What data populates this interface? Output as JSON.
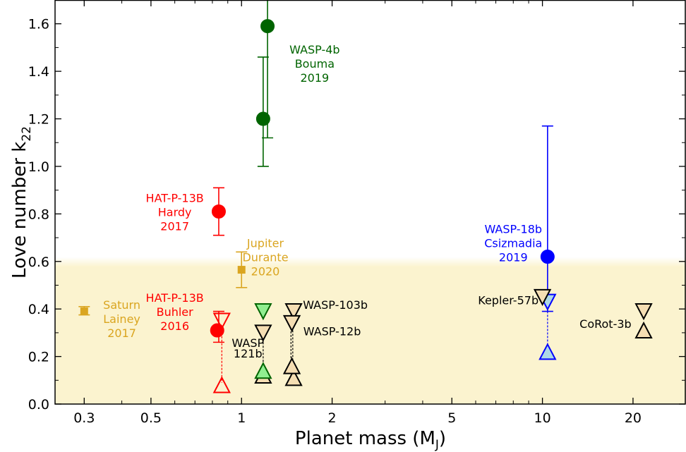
{
  "chart_data": {
    "type": "scatter",
    "xlabel": "Planet mass (M",
    "xlabel_sub": "J",
    "xlabel_tail": ")",
    "ylabel": "Love number k",
    "ylabel_sub": "22",
    "xscale": "log",
    "xlim": [
      0.24,
      30
    ],
    "ylim": [
      0.0,
      1.7
    ],
    "shaded_band": {
      "y_top": 0.58,
      "color": "#fbf3cf"
    },
    "x_ticks": [
      {
        "value": 0.3,
        "label": "0.3"
      },
      {
        "value": 0.5,
        "label": "0.5"
      },
      {
        "value": 1,
        "label": "1"
      },
      {
        "value": 2,
        "label": "2"
      },
      {
        "value": 5,
        "label": "5"
      },
      {
        "value": 10,
        "label": "10"
      },
      {
        "value": 20,
        "label": "20"
      }
    ],
    "x_minor_ticks": [
      0.4,
      0.6,
      0.7,
      0.8,
      0.9,
      3,
      4,
      6,
      7,
      8,
      9,
      30
    ],
    "y_ticks": [
      {
        "value": 0.0,
        "label": "0.0"
      },
      {
        "value": 0.2,
        "label": "0.2"
      },
      {
        "value": 0.4,
        "label": "0.4"
      },
      {
        "value": 0.6,
        "label": "0.6"
      },
      {
        "value": 0.8,
        "label": "0.8"
      },
      {
        "value": 1.0,
        "label": "1.0"
      },
      {
        "value": 1.2,
        "label": "1.2"
      },
      {
        "value": 1.4,
        "label": "1.4"
      },
      {
        "value": 1.6,
        "label": "1.6"
      }
    ],
    "y_minor_step": 0.1,
    "colors": {
      "green": "#006400",
      "red": "#ff0000",
      "gold": "#daa520",
      "blue": "#0000ff",
      "black": "#000000",
      "tan_fill": "#f5deb3",
      "light_green": "#90ee90",
      "light_blue": "#add8e6"
    },
    "error_bars": [
      {
        "x": 1.18,
        "y_low": 1.0,
        "y_high": 1.46,
        "color": "#006400"
      },
      {
        "x": 1.22,
        "y_low": 1.12,
        "y_high": 1.7,
        "color": "#006400"
      },
      {
        "x": 0.84,
        "y_low": 0.71,
        "y_high": 0.91,
        "color": "#ff0000"
      },
      {
        "x": 0.84,
        "y_low": 0.26,
        "y_high": 0.39,
        "color": "#ff0000"
      },
      {
        "x": 0.3,
        "y_low": 0.375,
        "y_high": 0.41,
        "color": "#daa520"
      },
      {
        "x": 1.0,
        "y_low": 0.49,
        "y_high": 0.64,
        "color": "#daa520"
      },
      {
        "x": 10.4,
        "y_low": 0.39,
        "y_high": 1.17,
        "color": "#0000ff"
      }
    ],
    "dashed_links": [
      {
        "x": 0.86,
        "y1": 0.33,
        "y2": 0.09,
        "color": "#ff0000"
      },
      {
        "x": 1.18,
        "y1": 0.29,
        "y2": 0.11,
        "color": "#000000"
      },
      {
        "x": 1.48,
        "y1": 0.34,
        "y2": 0.11,
        "color": "#000000"
      },
      {
        "x": 1.46,
        "y1": 0.38,
        "y2": 0.15,
        "color": "#000000"
      },
      {
        "x": 10.4,
        "y1": 0.42,
        "y2": 0.22,
        "color": "#0000ff"
      }
    ],
    "series": [
      {
        "name": "WASP-4b",
        "marker": "circle",
        "color": "#006400",
        "fill": "#006400",
        "points": [
          {
            "x": 1.18,
            "y": 1.2
          },
          {
            "x": 1.22,
            "y": 1.59
          }
        ]
      },
      {
        "name": "HAT-P-13B",
        "marker": "circle",
        "color": "#ff0000",
        "fill": "#ff0000",
        "points": [
          {
            "x": 0.84,
            "y": 0.81
          },
          {
            "x": 0.83,
            "y": 0.31
          }
        ]
      },
      {
        "name": "HAT-P-13B limits",
        "marker": "triangle",
        "color": "#ff0000",
        "fill": "none",
        "points": [
          {
            "x": 0.86,
            "y": 0.35,
            "dir": "down"
          },
          {
            "x": 0.86,
            "y": 0.08,
            "dir": "up"
          }
        ]
      },
      {
        "name": "Saturn",
        "marker": "square",
        "color": "#daa520",
        "fill": "#daa520",
        "points": [
          {
            "x": 0.3,
            "y": 0.39
          }
        ]
      },
      {
        "name": "Jupiter",
        "marker": "square",
        "color": "#daa520",
        "fill": "#daa520",
        "points": [
          {
            "x": 1.0,
            "y": 0.565
          }
        ]
      },
      {
        "name": "WASP-18b",
        "marker": "circle",
        "color": "#0000ff",
        "fill": "#0000ff",
        "points": [
          {
            "x": 10.4,
            "y": 0.62
          }
        ]
      },
      {
        "name": "WASP-18b limits",
        "marker": "triangle",
        "color": "#0000ff",
        "fill": "#add8e6",
        "points": [
          {
            "x": 10.4,
            "y": 0.43,
            "dir": "down"
          },
          {
            "x": 10.4,
            "y": 0.22,
            "dir": "up"
          }
        ]
      },
      {
        "name": "WASP-121b",
        "marker": "triangle",
        "color": "#000000",
        "fill": "#f5deb3",
        "points": [
          {
            "x": 1.18,
            "y": 0.3,
            "dir": "down"
          },
          {
            "x": 1.18,
            "y": 0.12,
            "dir": "up"
          }
        ]
      },
      {
        "name": "WASP-121b (alt)",
        "marker": "triangle",
        "color": "#006400",
        "fill": "#90ee90",
        "points": [
          {
            "x": 1.18,
            "y": 0.39,
            "dir": "down"
          },
          {
            "x": 1.18,
            "y": 0.14,
            "dir": "up"
          }
        ]
      },
      {
        "name": "WASP-103b",
        "marker": "triangle",
        "color": "#000000",
        "fill": "#f5deb3",
        "points": [
          {
            "x": 1.49,
            "y": 0.39,
            "dir": "down"
          },
          {
            "x": 1.49,
            "y": 0.11,
            "dir": "up"
          }
        ]
      },
      {
        "name": "WASP-12b",
        "marker": "triangle",
        "color": "#000000",
        "fill": "#f5deb3",
        "points": [
          {
            "x": 1.47,
            "y": 0.34,
            "dir": "down"
          },
          {
            "x": 1.47,
            "y": 0.16,
            "dir": "up"
          }
        ]
      },
      {
        "name": "Kepler-57b",
        "marker": "triangle",
        "color": "#000000",
        "fill": "#f5deb3",
        "points": [
          {
            "x": 10.0,
            "y": 0.45,
            "dir": "down"
          }
        ]
      },
      {
        "name": "CoRot-3b",
        "marker": "triangle",
        "color": "#000000",
        "fill": "#f5deb3",
        "points": [
          {
            "x": 21.7,
            "y": 0.39,
            "dir": "down"
          },
          {
            "x": 21.7,
            "y": 0.31,
            "dir": "up"
          }
        ]
      }
    ],
    "annotations": [
      {
        "lines": [
          "WASP-4b",
          "Bouma",
          "2019"
        ],
        "color": "#006400",
        "x": 1.75,
        "y": 1.475,
        "anchor": "middle"
      },
      {
        "lines": [
          "HAT-P-13B",
          "Hardy",
          "2017"
        ],
        "color": "#ff0000",
        "x": 0.6,
        "y": 0.85,
        "anchor": "middle"
      },
      {
        "lines": [
          "Jupiter",
          "Durante",
          "2020"
        ],
        "color": "#daa520",
        "x": 1.2,
        "y": 0.66,
        "anchor": "middle"
      },
      {
        "lines": [
          "HAT-P-13B",
          "Buhler",
          "2016"
        ],
        "color": "#ff0000",
        "x": 0.6,
        "y": 0.43,
        "anchor": "middle"
      },
      {
        "lines": [
          "Saturn",
          "Lainey",
          "2017"
        ],
        "color": "#daa520",
        "x": 0.4,
        "y": 0.4,
        "anchor": "middle"
      },
      {
        "lines": [
          "WASP-18b",
          "Csizmadia",
          "2019"
        ],
        "color": "#0000ff",
        "x": 8.0,
        "y": 0.72,
        "anchor": "middle"
      },
      {
        "lines": [
          "WASP-103b"
        ],
        "color": "#000000",
        "x": 2.05,
        "y": 0.4,
        "anchor": "middle"
      },
      {
        "lines": [
          "WASP-12b"
        ],
        "color": "#000000",
        "x": 2.0,
        "y": 0.29,
        "anchor": "middle"
      },
      {
        "lines": [
          "WASP",
          "121b"
        ],
        "color": "#000000",
        "x": 1.05,
        "y": 0.24,
        "anchor": "middle",
        "small": true
      },
      {
        "lines": [
          "Kepler-57b"
        ],
        "color": "#000000",
        "x": 7.7,
        "y": 0.42,
        "anchor": "middle"
      },
      {
        "lines": [
          "CoRot-3b"
        ],
        "color": "#000000",
        "x": 16.2,
        "y": 0.32,
        "anchor": "middle"
      }
    ]
  }
}
